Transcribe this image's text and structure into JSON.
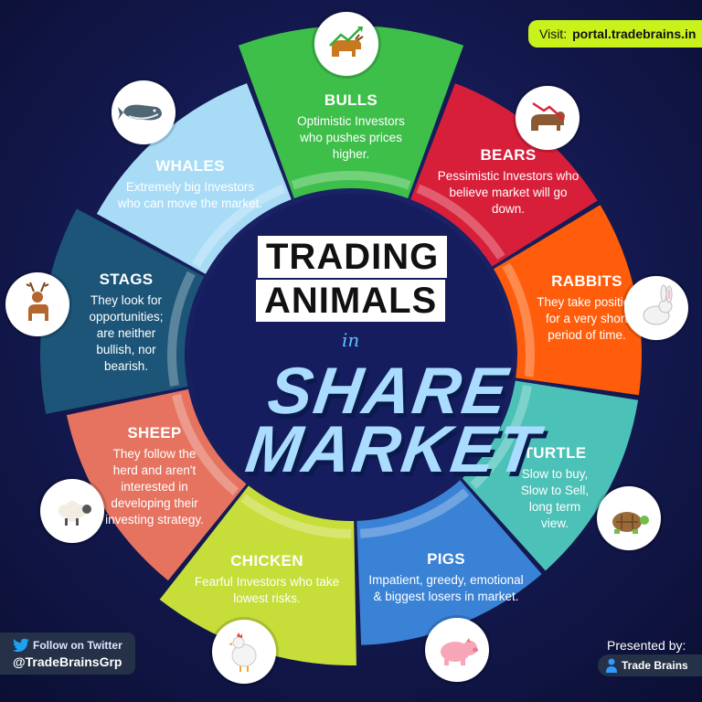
{
  "title": {
    "line1": "TRADING",
    "line2": "ANIMALS",
    "connector": "in",
    "line3": "SHARE",
    "line4": "MARKET"
  },
  "visit": {
    "label": "Visit:",
    "url": "portal.tradebrains.in"
  },
  "twitter": {
    "label": "Follow on Twitter",
    "handle": "@TradeBrainsGrp",
    "icon": "twitter-bird-icon"
  },
  "presenter": {
    "label": "Presented by:",
    "brand": "Trade Brains",
    "icon": "trade-brains-logo-icon"
  },
  "colors": {
    "bulls": "#3ebf4a",
    "bears": "#d81f3a",
    "rabbits": "#ff5d0b",
    "turtle": "#4cc1b7",
    "pigs": "#3a82d6",
    "chicken": "#c7dd3a",
    "sheep": "#e57360",
    "stags": "#1c5578",
    "whales": "#a8dcf6",
    "visit_bar": "#c9f21d",
    "big_text": "#a9dcff"
  },
  "segments": [
    {
      "id": "bulls",
      "title": "BULLS",
      "desc": "Optimistic Investors who pushes prices higher.",
      "icon": "bull-icon"
    },
    {
      "id": "bears",
      "title": "BEARS",
      "desc": "Pessimistic Investors who believe market will go down.",
      "icon": "bear-icon"
    },
    {
      "id": "rabbits",
      "title": "RABBITS",
      "desc": "They take position for a very short period of time.",
      "icon": "rabbit-icon"
    },
    {
      "id": "turtle",
      "title": "TURTLE",
      "desc": "Slow to buy, Slow to Sell, long term view.",
      "icon": "turtle-icon"
    },
    {
      "id": "pigs",
      "title": "PIGS",
      "desc": "Impatient, greedy, emotional & biggest losers in market.",
      "icon": "pig-icon"
    },
    {
      "id": "chicken",
      "title": "CHICKEN",
      "desc": "Fearful Investors who take lowest risks.",
      "icon": "chicken-icon"
    },
    {
      "id": "sheep",
      "title": "SHEEP",
      "desc": "They follow the herd and aren't interested in developing their investing strategy.",
      "icon": "sheep-icon"
    },
    {
      "id": "stags",
      "title": "STAGS",
      "desc": "They look for opportunities; are neither bullish, nor bearish.",
      "icon": "stag-icon"
    },
    {
      "id": "whales",
      "title": "WHALES",
      "desc": "Extremely big Investors who can move the market.",
      "icon": "whale-icon"
    }
  ]
}
